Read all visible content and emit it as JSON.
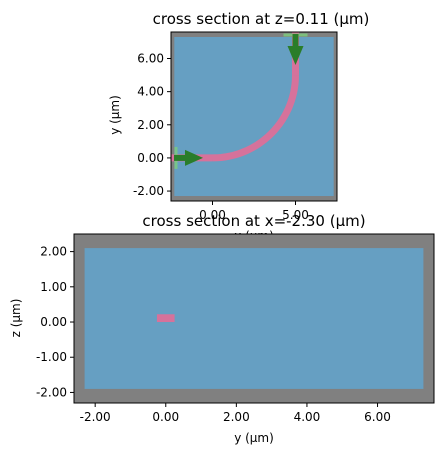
{
  "chart_data": [
    {
      "type": "heatmap",
      "title": "cross section at z=0.11 (μm)",
      "xlabel": "x (μm)",
      "ylabel": "y (μm)",
      "xlim": [
        -2.5,
        7.5
      ],
      "ylim": [
        -2.6,
        7.6
      ],
      "xticks": [
        0,
        5
      ],
      "xtick_labels": [
        "0.00",
        "5.00"
      ],
      "yticks": [
        -2,
        0,
        2,
        4,
        6
      ],
      "ytick_labels": [
        "-2.00",
        "0.00",
        "2.00",
        "4.00",
        "6.00"
      ],
      "background_region": {
        "x": [
          -2.5,
          7.5
        ],
        "y": [
          -2.6,
          7.6
        ],
        "color": "#808080"
      },
      "simulation_region": {
        "x": [
          -2.3,
          7.3
        ],
        "y": [
          -2.3,
          7.3
        ],
        "color": "#669fc2"
      },
      "waveguide": {
        "color": "#d6729b",
        "straight_in": {
          "x": [
            -2.5,
            0
          ],
          "y": 0
        },
        "bend": {
          "center": [
            0,
            5
          ],
          "radius": 5,
          "from_deg": 270,
          "to_deg": 360
        },
        "straight_out": {
          "x": 5,
          "y": [
            5,
            7.6
          ]
        }
      },
      "sources": [
        {
          "position": [
            0,
            0
          ],
          "direction": "+x",
          "color": "#2a7d2a"
        },
        {
          "position": [
            5,
            7.6
          ],
          "direction": "-y",
          "color": "#2a7d2a"
        }
      ],
      "monitors_color": "#7ccf7c"
    },
    {
      "type": "heatmap",
      "title": "cross section at x=-2.30 (μm)",
      "xlabel": "y (μm)",
      "ylabel": "z (μm)",
      "xlim": [
        -2.6,
        7.6
      ],
      "ylim": [
        -2.3,
        2.5
      ],
      "xticks": [
        -2,
        0,
        2,
        4,
        6
      ],
      "xtick_labels": [
        "-2.00",
        "0.00",
        "2.00",
        "4.00",
        "6.00"
      ],
      "yticks": [
        -2,
        -1,
        0,
        1,
        2
      ],
      "ytick_labels": [
        "-2.00",
        "-1.00",
        "0.00",
        "1.00",
        "2.00"
      ],
      "background_region": {
        "x": [
          -2.6,
          7.6
        ],
        "y": [
          -2.3,
          2.5
        ],
        "color": "#808080"
      },
      "simulation_region": {
        "x": [
          -2.3,
          7.3
        ],
        "y": [
          -1.9,
          2.1
        ],
        "color": "#669fc2"
      },
      "waveguide_section": {
        "y": [
          -0.25,
          0.25
        ],
        "z": [
          0.0,
          0.22
        ],
        "color": "#d6729b"
      }
    }
  ]
}
